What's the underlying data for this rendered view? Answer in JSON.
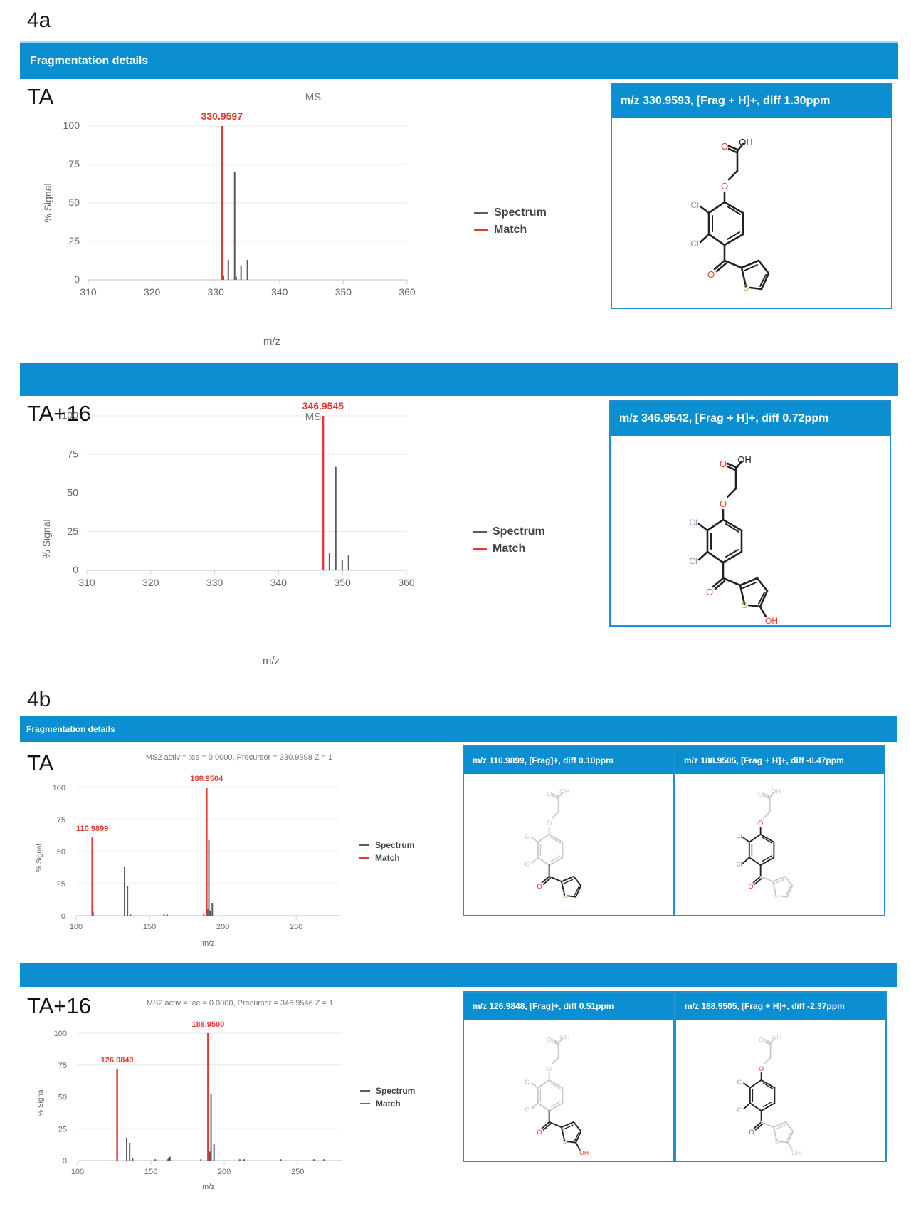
{
  "figure_4a": {
    "label": "4a",
    "header_title": "Fragmentation details",
    "rows": [
      {
        "label": "TA",
        "chart_title": "MS",
        "card": {
          "title": "m/z 330.9593, [Frag + H]+, diff 1.30ppm"
        }
      },
      {
        "label": "TA+16",
        "chart_title": "MS",
        "card": {
          "title": "m/z 346.9542, [Frag + H]+, diff 0.72ppm"
        }
      }
    ]
  },
  "figure_4b": {
    "label": "4b",
    "header_title": "Fragmentation details",
    "rows": [
      {
        "label": "TA",
        "chart_title": "MS2 activ = :ce = 0.0000, Precursor = 330.9598 Z = 1",
        "cards": [
          {
            "title": "m/z 110.9899, [Frag]+, diff 0.10ppm"
          },
          {
            "title": "m/z 188.9505, [Frag + H]+, diff -0.47ppm"
          }
        ]
      },
      {
        "label": "TA+16",
        "chart_title": "MS2 activ = :ce = 0.0000, Precursor = 346.9546 Z = 1",
        "cards": [
          {
            "title": "m/z 126.9848, [Frag]+, diff 0.51ppm"
          },
          {
            "title": "m/z 188.9505, [Frag + H]+, diff -2.37ppm"
          }
        ]
      }
    ]
  },
  "legend": {
    "spectrum": "Spectrum",
    "match": "Match"
  },
  "colors": {
    "header_blue": "#0b8fd0",
    "match_red": "#e53935",
    "spectrum_gray": "#555b66",
    "chlorine": "#b07cc6",
    "oxygen": "#e53935",
    "sulfur": "#b5b04a"
  },
  "chart_data": [
    {
      "id": "4a-TA",
      "type": "bar",
      "title": "MS",
      "xlabel": "m/z",
      "ylabel": "% Signal",
      "xlim": [
        310,
        360
      ],
      "ylim": [
        0,
        100
      ],
      "xticks": [
        310,
        320,
        330,
        340,
        350,
        360
      ],
      "yticks": [
        0,
        25,
        50,
        75,
        100
      ],
      "grid": true,
      "legend": [
        "Spectrum",
        "Match"
      ],
      "legend_position": "right",
      "series": [
        {
          "name": "Match",
          "x": [
            330.9597
          ],
          "values": [
            100
          ]
        },
        {
          "name": "Spectrum",
          "x": [
            331.2,
            331.96,
            332.96,
            333.2,
            333.96,
            334.96
          ],
          "values": [
            3,
            13,
            70,
            2,
            9,
            13
          ]
        }
      ],
      "annotations": [
        {
          "x": 330.9597,
          "text": "330.9597"
        }
      ]
    },
    {
      "id": "4a-TA+16",
      "type": "bar",
      "title": "MS",
      "xlabel": "m/z",
      "ylabel": "% Signal",
      "xlim": [
        310,
        360
      ],
      "ylim": [
        0,
        100
      ],
      "xticks": [
        310,
        320,
        330,
        340,
        350,
        360
      ],
      "yticks": [
        0,
        25,
        50,
        75,
        100
      ],
      "grid": true,
      "legend": [
        "Spectrum",
        "Match"
      ],
      "legend_position": "right",
      "series": [
        {
          "name": "Match",
          "x": [
            346.9545
          ],
          "values": [
            100
          ]
        },
        {
          "name": "Spectrum",
          "x": [
            347.96,
            348.95,
            349.96,
            350.95
          ],
          "values": [
            11,
            67,
            7,
            10
          ]
        }
      ],
      "annotations": [
        {
          "x": 346.9545,
          "text": "346.9545"
        }
      ]
    },
    {
      "id": "4b-TA",
      "type": "bar",
      "title": "MS2 activ = :ce = 0.0000, Precursor = 330.9598 Z = 1",
      "xlabel": "m/z",
      "ylabel": "% Signal",
      "xlim": [
        100,
        280
      ],
      "ylim": [
        0,
        100
      ],
      "xticks": [
        100,
        150,
        200,
        250
      ],
      "yticks": [
        0,
        25,
        50,
        75,
        100
      ],
      "grid": true,
      "legend": [
        "Spectrum",
        "Match"
      ],
      "legend_position": "right",
      "series": [
        {
          "name": "Match",
          "x": [
            110.9899,
            188.9504
          ],
          "values": [
            61,
            100
          ]
        },
        {
          "name": "Spectrum",
          "x": [
            111.5,
            133,
            135,
            137,
            160,
            162,
            187,
            189.5,
            190.5,
            191.5,
            192.8
          ],
          "values": [
            3,
            38,
            23,
            1,
            1,
            1,
            1,
            5,
            59,
            4,
            10
          ]
        }
      ],
      "annotations": [
        {
          "x": 110.9899,
          "text": "110.9899"
        },
        {
          "x": 188.9504,
          "text": "188.9504"
        }
      ]
    },
    {
      "id": "4b-TA+16",
      "type": "bar",
      "title": "MS2 activ = :ce = 0.0000, Precursor = 346.9546 Z = 1",
      "xlabel": "m/z",
      "ylabel": "% Signal",
      "xlim": [
        100,
        280
      ],
      "ylim": [
        0,
        100
      ],
      "xticks": [
        100,
        150,
        200,
        250
      ],
      "yticks": [
        0,
        25,
        50,
        75,
        100
      ],
      "grid": true,
      "legend": [
        "Spectrum",
        "Match"
      ],
      "legend_position": "right",
      "series": [
        {
          "name": "Match",
          "x": [
            126.9849,
            188.95
          ],
          "values": [
            72,
            100
          ]
        },
        {
          "name": "Spectrum",
          "x": [
            133.5,
            135.5,
            137.5,
            153,
            161,
            162,
            163,
            184,
            190,
            191,
            193,
            210.5,
            213.5,
            238.5,
            261,
            268
          ],
          "values": [
            18,
            14,
            2,
            1,
            1,
            2,
            3,
            1,
            7,
            52,
            13,
            1,
            1,
            1,
            1,
            1
          ]
        }
      ],
      "annotations": [
        {
          "x": 126.9849,
          "text": "126.9849"
        },
        {
          "x": 188.95,
          "text": "188.9500"
        }
      ]
    }
  ]
}
